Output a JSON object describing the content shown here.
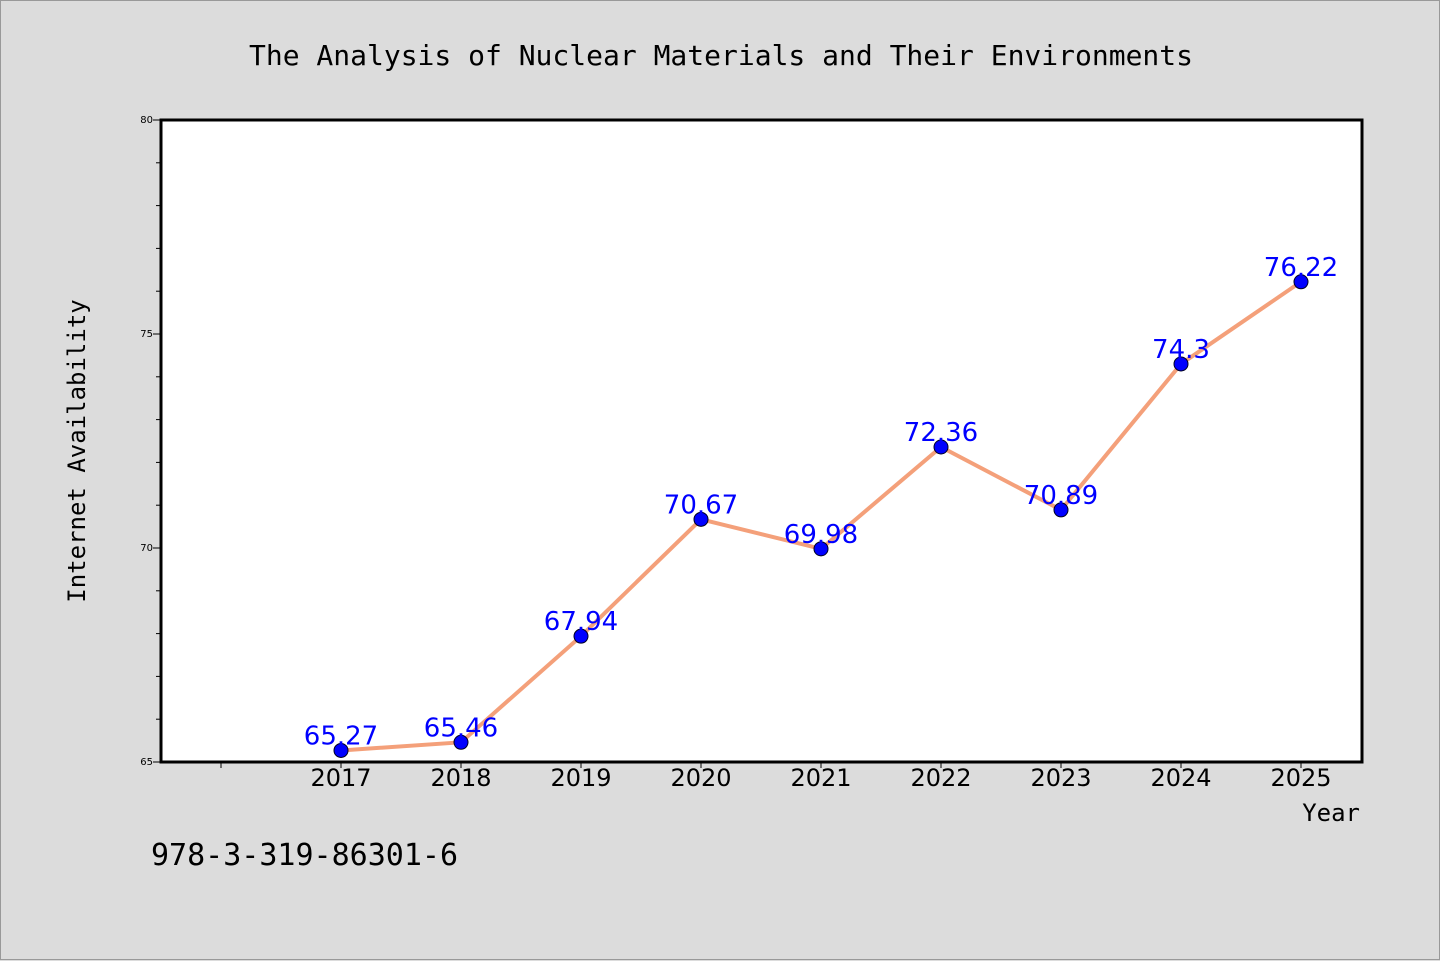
{
  "chart_data": {
    "type": "line",
    "title": "The Analysis of Nuclear Materials and Their Environments",
    "xlabel": "Year",
    "ylabel": "Internet Availability",
    "categories": [
      "2017",
      "2018",
      "2019",
      "2020",
      "2021",
      "2022",
      "2023",
      "2024",
      "2025"
    ],
    "series": [
      {
        "values": [
          65.27,
          65.46,
          67.94,
          70.67,
          69.98,
          72.36,
          70.89,
          74.3,
          76.22
        ],
        "labels": [
          "65.27",
          "65.46",
          "67.94",
          "70.67",
          "69.98",
          "72.36",
          "70.89",
          "74.3",
          "76.22"
        ],
        "line_color": "#f4a07a",
        "marker_color": "#0000ff"
      }
    ],
    "ylim": [
      65,
      80
    ],
    "yticks": [
      "65",
      "70",
      "75",
      "80"
    ],
    "grid": false,
    "legend": "none"
  },
  "footer": {
    "isbn": "978-3-319-86301-6"
  }
}
